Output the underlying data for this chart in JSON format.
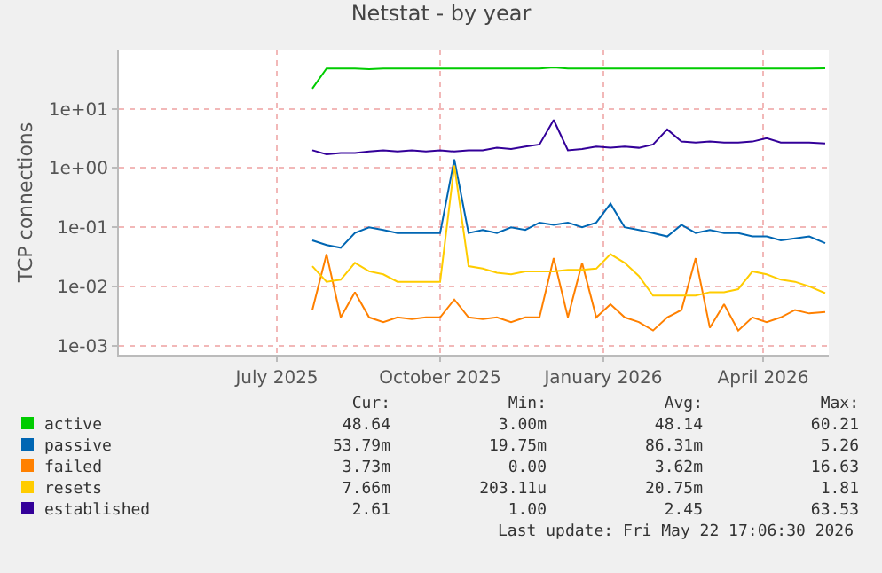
{
  "chart_data": {
    "type": "line",
    "title": "Netstat - by year",
    "ylabel": "TCP connections",
    "log": true,
    "grid": true,
    "legend": "bottom",
    "marker": "none",
    "line_style": "solid",
    "ylim": [
      0.0007,
      100
    ],
    "yticks": [
      {
        "value": 0.001,
        "label": "1e-03"
      },
      {
        "value": 0.01,
        "label": "1e-02"
      },
      {
        "value": 0.1,
        "label": "1e-01"
      },
      {
        "value": 1,
        "label": "1e+00"
      },
      {
        "value": 10,
        "label": "1e+01"
      }
    ],
    "xlim": [
      "2025-04-17",
      "2026-05-22"
    ],
    "xticks": [
      {
        "value": "2025-07-15",
        "label": "July 2025"
      },
      {
        "value": "2025-10-15",
        "label": "October 2025"
      },
      {
        "value": "2026-01-15",
        "label": "January 2026"
      },
      {
        "value": "2026-04-15",
        "label": "April 2026"
      }
    ],
    "x": [
      "2025-08-04",
      "2025-08-12",
      "2025-08-20",
      "2025-08-28",
      "2025-09-05",
      "2025-09-13",
      "2025-09-21",
      "2025-09-29",
      "2025-10-07",
      "2025-10-15",
      "2025-10-23",
      "2025-10-31",
      "2025-11-08",
      "2025-11-16",
      "2025-11-24",
      "2025-12-02",
      "2025-12-10",
      "2025-12-18",
      "2025-12-26",
      "2026-01-03",
      "2026-01-11",
      "2026-01-19",
      "2026-01-27",
      "2026-02-04",
      "2026-02-12",
      "2026-02-20",
      "2026-02-28",
      "2026-03-08",
      "2026-03-16",
      "2026-03-24",
      "2026-04-01",
      "2026-04-09",
      "2026-04-17",
      "2026-04-25",
      "2026-05-03",
      "2026-05-11",
      "2026-05-20"
    ],
    "series": [
      {
        "name": "active",
        "color": "#00cc00",
        "values": [
          22,
          48,
          48,
          48,
          47,
          48,
          48,
          48,
          48,
          48,
          48,
          48,
          48,
          48,
          48,
          48,
          48,
          50,
          48,
          48,
          48,
          48,
          48,
          48,
          48,
          48,
          48,
          48,
          48,
          48,
          48,
          48,
          48,
          48,
          48,
          48,
          48.6
        ]
      },
      {
        "name": "passive",
        "color": "#0066b3",
        "values": [
          0.06,
          0.05,
          0.045,
          0.08,
          0.1,
          0.09,
          0.08,
          0.08,
          0.08,
          0.08,
          1.4,
          0.08,
          0.09,
          0.08,
          0.1,
          0.09,
          0.12,
          0.11,
          0.12,
          0.1,
          0.12,
          0.25,
          0.1,
          0.09,
          0.08,
          0.07,
          0.11,
          0.08,
          0.09,
          0.08,
          0.08,
          0.07,
          0.07,
          0.06,
          0.065,
          0.07,
          0.054
        ]
      },
      {
        "name": "failed",
        "color": "#ff8000",
        "values": [
          0.004,
          0.035,
          0.003,
          0.008,
          0.003,
          0.0025,
          0.003,
          0.0028,
          0.003,
          0.003,
          0.006,
          0.003,
          0.0028,
          0.003,
          0.0025,
          0.003,
          0.003,
          0.03,
          0.003,
          0.025,
          0.003,
          0.005,
          0.003,
          0.0025,
          0.0018,
          0.003,
          0.004,
          0.03,
          0.002,
          0.005,
          0.0018,
          0.003,
          0.0025,
          0.003,
          0.004,
          0.0035,
          0.0037
        ]
      },
      {
        "name": "resets",
        "color": "#ffcc00",
        "values": [
          0.022,
          0.012,
          0.013,
          0.025,
          0.018,
          0.016,
          0.012,
          0.012,
          0.012,
          0.012,
          1.1,
          0.022,
          0.02,
          0.017,
          0.016,
          0.018,
          0.018,
          0.018,
          0.019,
          0.019,
          0.02,
          0.035,
          0.025,
          0.015,
          0.007,
          0.007,
          0.007,
          0.007,
          0.008,
          0.008,
          0.009,
          0.018,
          0.016,
          0.013,
          0.012,
          0.01,
          0.0077
        ]
      },
      {
        "name": "established",
        "color": "#330099",
        "values": [
          2.0,
          1.7,
          1.8,
          1.8,
          1.9,
          2.0,
          1.9,
          2.0,
          1.9,
          2.0,
          1.9,
          2.0,
          2.0,
          2.2,
          2.1,
          2.3,
          2.5,
          6.5,
          2.0,
          2.1,
          2.3,
          2.2,
          2.3,
          2.2,
          2.5,
          4.5,
          2.8,
          2.7,
          2.8,
          2.7,
          2.7,
          2.8,
          3.2,
          2.7,
          2.7,
          2.7,
          2.61
        ]
      }
    ],
    "annotations": [
      "Cur:",
      "Min:",
      "Avg:",
      "Max:",
      "48.64",
      "3.00m",
      "48.14",
      "60.21",
      "53.79m",
      "19.75m",
      "86.31m",
      "5.26",
      "3.73m",
      "0.00",
      "3.62m",
      "16.63",
      "7.66m",
      "203.11u",
      "20.75m",
      "1.81",
      "2.61",
      "1.00",
      "2.45",
      "63.53",
      "Last update: Fri May 22 17:06:30 2026"
    ]
  }
}
